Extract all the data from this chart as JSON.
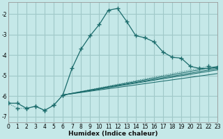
{
  "xlabel": "Humidex (Indice chaleur)",
  "background_color": "#c5e8e8",
  "grid_color": "#a0c8c8",
  "line_color": "#1a6b6b",
  "xlim": [
    0,
    23
  ],
  "ylim": [
    -7.3,
    -1.4
  ],
  "yticks": [
    -7,
    -6,
    -5,
    -4,
    -3,
    -2
  ],
  "xticks": [
    0,
    1,
    2,
    3,
    4,
    5,
    6,
    7,
    8,
    9,
    10,
    11,
    12,
    13,
    14,
    15,
    16,
    17,
    18,
    19,
    20,
    21,
    22,
    23
  ],
  "line_main_x": [
    0,
    1,
    2,
    3,
    4,
    5,
    6,
    7,
    8,
    9,
    10,
    11,
    12,
    13,
    14,
    15,
    16,
    17,
    18,
    19,
    20,
    21,
    22,
    23
  ],
  "line_main_y": [
    -6.35,
    -6.35,
    -6.6,
    -6.5,
    -6.7,
    -6.45,
    -5.95,
    -4.65,
    -3.7,
    -3.05,
    -2.5,
    -1.8,
    -1.72,
    -2.35,
    -3.05,
    -3.15,
    -3.35,
    -3.85,
    -4.1,
    -4.15,
    -4.55,
    -4.65,
    -4.65,
    -4.6
  ],
  "line_dotted_x": [
    0,
    1,
    2,
    3,
    4,
    5,
    6,
    22,
    23
  ],
  "line_dotted_y": [
    -6.35,
    -6.6,
    -6.6,
    -6.5,
    -6.7,
    -6.45,
    -5.95,
    -4.55,
    -4.62
  ],
  "fan_lines": [
    {
      "x": [
        6,
        23
      ],
      "y": [
        -5.95,
        -4.55
      ]
    },
    {
      "x": [
        6,
        23
      ],
      "y": [
        -5.95,
        -4.65
      ]
    },
    {
      "x": [
        6,
        23
      ],
      "y": [
        -5.95,
        -4.72
      ]
    },
    {
      "x": [
        6,
        23
      ],
      "y": [
        -5.95,
        -4.9
      ]
    }
  ]
}
